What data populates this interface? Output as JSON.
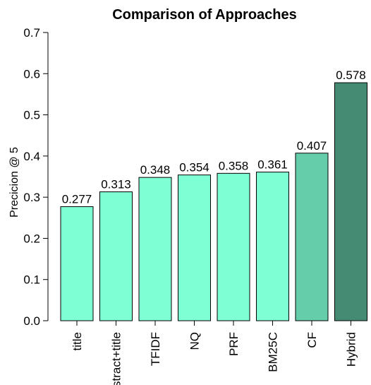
{
  "chart_data": {
    "type": "bar",
    "title": "Comparison of Approaches",
    "xlabel": "",
    "ylabel": "Precicion @ 5",
    "ylim": [
      0,
      0.7
    ],
    "yticks": [
      "0.0",
      "0.1",
      "0.2",
      "0.3",
      "0.4",
      "0.5",
      "0.6",
      "0.7"
    ],
    "grid": false,
    "categories": [
      "title",
      "abstract+title",
      "TFIDF",
      "NQ",
      "PRF",
      "BM25C",
      "CF",
      "Hybrid"
    ],
    "values": [
      0.277,
      0.313,
      0.348,
      0.354,
      0.358,
      0.361,
      0.407,
      0.578
    ],
    "value_labels": [
      "0.277",
      "0.313",
      "0.348",
      "0.354",
      "0.358",
      "0.361",
      "0.407",
      "0.578"
    ],
    "bar_colors": [
      "#7fffd4",
      "#7fffd4",
      "#7fffd4",
      "#7fffd4",
      "#7fffd4",
      "#7fffd4",
      "#66cdaa",
      "#458b74"
    ]
  }
}
